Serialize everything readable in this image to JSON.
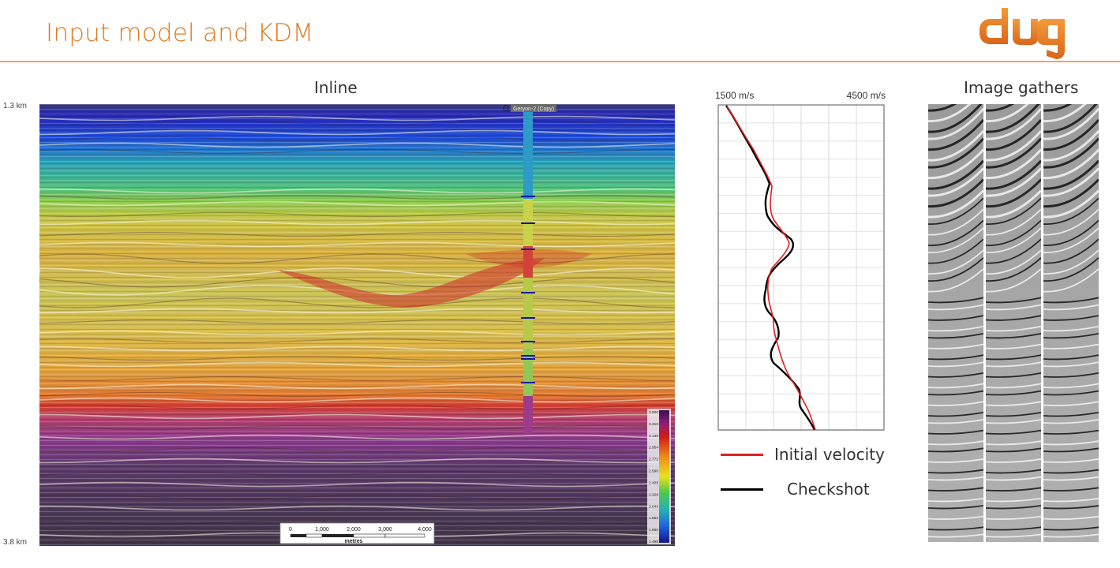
{
  "header": {
    "title": "Input model and KDM",
    "logo_text": "dug",
    "accent_color": "#e07a22"
  },
  "inline_panel": {
    "title": "Inline",
    "depth_top": "1.3 km",
    "depth_bottom": "3.8 km",
    "well_label": "Geryon-2 (Copy)",
    "colorbar_ticks": [
      "3.500",
      "3.318",
      "3.136",
      "2.954",
      "2.772",
      "2.590",
      "2.408",
      "2.226",
      "2.044",
      "1.862",
      "1.680",
      "1.498"
    ],
    "scale_bar": {
      "ticks": [
        "0",
        "1,000",
        "2,000",
        "3,000",
        "4,000"
      ],
      "unit": "metres"
    }
  },
  "velocity_panel": {
    "xlim_labels": [
      "1500 m/s",
      "4500 m/s"
    ],
    "legend": {
      "initial_label": "Initial velocity",
      "initial_color": "#e02020",
      "checkshot_label": "Checkshot",
      "checkshot_color": "#000000"
    }
  },
  "gathers_panel": {
    "title": "Image gathers"
  }
}
